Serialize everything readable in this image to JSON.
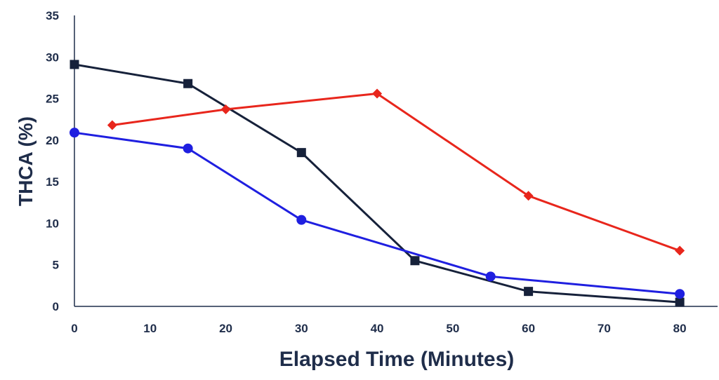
{
  "chart_data": {
    "type": "line",
    "xlabel": "Elapsed Time (Minutes)",
    "ylabel": "THCA (%)",
    "xlim": [
      0,
      85
    ],
    "ylim": [
      0,
      35
    ],
    "x_ticks": [
      0,
      10,
      20,
      30,
      40,
      50,
      60,
      70,
      80
    ],
    "y_ticks": [
      0,
      5,
      10,
      15,
      20,
      25,
      30,
      35
    ],
    "grid": false,
    "legend": "none",
    "series": [
      {
        "marker": "square",
        "color": "#16213a",
        "points": [
          [
            0,
            29.1
          ],
          [
            15,
            26.8
          ],
          [
            30,
            18.5
          ],
          [
            45,
            5.5
          ],
          [
            60,
            1.8
          ],
          [
            80,
            0.5
          ]
        ]
      },
      {
        "marker": "diamond",
        "color": "#e8261c",
        "points": [
          [
            5,
            21.8
          ],
          [
            20,
            23.7
          ],
          [
            40,
            25.6
          ],
          [
            60,
            13.3
          ],
          [
            80,
            6.7
          ]
        ]
      },
      {
        "marker": "circle",
        "color": "#1f1fe0",
        "points": [
          [
            0,
            20.9
          ],
          [
            15,
            19.0
          ],
          [
            30,
            10.4
          ],
          [
            55,
            3.6
          ],
          [
            80,
            1.5
          ]
        ]
      }
    ]
  }
}
